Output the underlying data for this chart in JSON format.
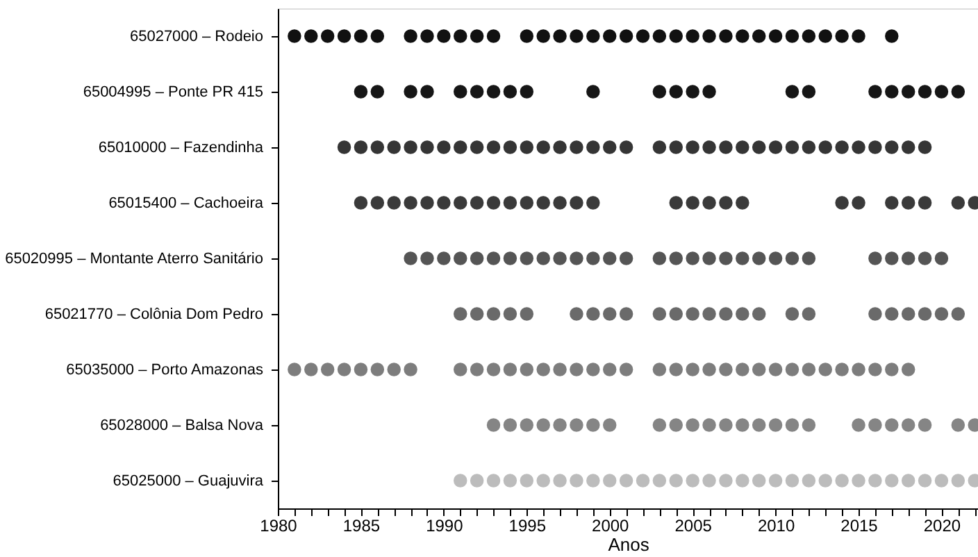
{
  "chart_data": {
    "type": "scatter",
    "orientation": "horizontal",
    "xlabel": "Anos",
    "xlim": [
      1980,
      2022.2
    ],
    "xticks": [
      1980,
      {
        "value": 1981,
        "label": null
      },
      {
        "value": 1982,
        "label": null
      },
      {
        "value": 1983,
        "label": null
      },
      {
        "value": 1984,
        "label": null
      },
      1985,
      {
        "value": 1986,
        "label": null
      },
      {
        "value": 1987,
        "label": null
      },
      {
        "value": 1988,
        "label": null
      },
      {
        "value": 1989,
        "label": null
      },
      1990,
      {
        "value": 1991,
        "label": null
      },
      {
        "value": 1992,
        "label": null
      },
      {
        "value": 1993,
        "label": null
      },
      {
        "value": 1994,
        "label": null
      },
      1995,
      {
        "value": 1996,
        "label": null
      },
      {
        "value": 1997,
        "label": null
      },
      {
        "value": 1998,
        "label": null
      },
      {
        "value": 1999,
        "label": null
      },
      2000,
      {
        "value": 2001,
        "label": null
      },
      {
        "value": 2002,
        "label": null
      },
      {
        "value": 2003,
        "label": null
      },
      {
        "value": 2004,
        "label": null
      },
      2005,
      {
        "value": 2006,
        "label": null
      },
      {
        "value": 2007,
        "label": null
      },
      {
        "value": 2008,
        "label": null
      },
      {
        "value": 2009,
        "label": null
      },
      2010,
      {
        "value": 2011,
        "label": null
      },
      {
        "value": 2012,
        "label": null
      },
      {
        "value": 2013,
        "label": null
      },
      {
        "value": 2014,
        "label": null
      },
      2015,
      {
        "value": 2016,
        "label": null
      },
      {
        "value": 2017,
        "label": null
      },
      {
        "value": 2018,
        "label": null
      },
      {
        "value": 2019,
        "label": null
      },
      2020,
      {
        "value": 2021,
        "label": null
      },
      {
        "value": 2022,
        "label": null
      }
    ],
    "categories": [
      "65027000 – Rodeio",
      "65004995 – Ponte PR 415",
      "65010000 – Fazendinha",
      "65015400 – Cachoeira",
      "65020995 – Montante Aterro Sanitário",
      "65021770 – Colônia Dom Pedro",
      "65035000 – Porto Amazonas",
      "65028000 – Balsa Nova",
      "65025000 – Guajuvira"
    ],
    "marker": "circle",
    "grid": false,
    "series": [
      {
        "colors": [
          "#111111",
          "#161616",
          "#353535",
          "#3a3a3a",
          "#555555",
          "#6a6a6a",
          "#7d7d7d",
          "#858585",
          "#bcbcbc"
        ],
        "values": [
          1981,
          1985,
          1984,
          1985,
          1988,
          1991,
          1981,
          1993,
          1991
        ]
      },
      {
        "colors": [
          "#111111",
          "#161616",
          "#353535",
          "#3a3a3a",
          "#555555",
          "#6a6a6a",
          "#7d7d7d",
          "#858585",
          "#bcbcbc"
        ],
        "values": [
          1982,
          1986,
          1985,
          1986,
          1989,
          1992,
          1982,
          1994,
          1992
        ]
      },
      {
        "colors": [
          "#111111",
          "#161616",
          "#353535",
          "#3a3a3a",
          "#555555",
          "#6a6a6a",
          "#7d7d7d",
          "#858585",
          "#bcbcbc"
        ],
        "values": [
          1983,
          1988,
          1986,
          1987,
          1990,
          1993,
          1983,
          1995,
          1993
        ]
      },
      {
        "colors": [
          "#111111",
          "#161616",
          "#353535",
          "#3a3a3a",
          "#555555",
          "#6a6a6a",
          "#7d7d7d",
          "#858585",
          "#bcbcbc"
        ],
        "values": [
          1984,
          1989,
          1987,
          1988,
          1991,
          1994,
          1984,
          1996,
          1994
        ]
      },
      {
        "colors": [
          "#111111",
          "#161616",
          "#353535",
          "#3a3a3a",
          "#555555",
          "#6a6a6a",
          "#7d7d7d",
          "#858585",
          "#bcbcbc"
        ],
        "values": [
          1985,
          1991,
          1988,
          1989,
          1992,
          1995,
          1985,
          1997,
          1995
        ]
      },
      {
        "colors": [
          "#111111",
          "#161616",
          "#353535",
          "#3a3a3a",
          "#555555",
          "#6a6a6a",
          "#7d7d7d",
          "#858585",
          "#bcbcbc"
        ],
        "values": [
          1986,
          1992,
          1989,
          1990,
          1993,
          1998,
          1986,
          1998,
          1996
        ]
      },
      {
        "colors": [
          "#111111",
          "#161616",
          "#353535",
          "#3a3a3a",
          "#555555",
          "#6a6a6a",
          "#7d7d7d",
          "#858585",
          "#bcbcbc"
        ],
        "values": [
          1988,
          1993,
          1990,
          1991,
          1994,
          1999,
          1987,
          1999,
          1997
        ]
      },
      {
        "colors": [
          "#111111",
          "#161616",
          "#353535",
          "#3a3a3a",
          "#555555",
          "#6a6a6a",
          "#7d7d7d",
          "#858585",
          "#bcbcbc"
        ],
        "values": [
          1989,
          1994,
          1991,
          1992,
          1995,
          2000,
          1988,
          2000,
          1998
        ]
      },
      {
        "colors": [
          "#111111",
          "#161616",
          "#353535",
          "#3a3a3a",
          "#555555",
          "#6a6a6a",
          "#7d7d7d",
          "#858585",
          "#bcbcbc"
        ],
        "values": [
          1990,
          1995,
          1992,
          1993,
          1996,
          2001,
          1991,
          2003,
          1999
        ]
      },
      {
        "colors": [
          "#111111",
          "#161616",
          "#353535",
          "#3a3a3a",
          "#555555",
          "#6a6a6a",
          "#7d7d7d",
          "#858585",
          "#bcbcbc"
        ],
        "values": [
          1991,
          1999,
          1993,
          1994,
          1997,
          2003,
          1992,
          2004,
          2000
        ]
      },
      {
        "colors": [
          "#111111",
          "#161616",
          "#353535",
          "#3a3a3a",
          "#555555",
          "#6a6a6a",
          "#7d7d7d",
          "#858585",
          "#bcbcbc"
        ],
        "values": [
          1992,
          2003,
          1994,
          1995,
          1998,
          2004,
          1993,
          2005,
          2001
        ]
      },
      {
        "colors": [
          "#111111",
          "#161616",
          "#353535",
          "#3a3a3a",
          "#555555",
          "#6a6a6a",
          "#7d7d7d",
          "#858585",
          "#bcbcbc"
        ],
        "values": [
          1993,
          2004,
          1995,
          1996,
          1999,
          2005,
          1994,
          2006,
          2002
        ]
      },
      {
        "colors": [
          "#111111",
          "#161616",
          "#353535",
          "#3a3a3a",
          "#555555",
          "#6a6a6a",
          "#7d7d7d",
          "#858585",
          "#bcbcbc"
        ],
        "values": [
          1995,
          2005,
          1996,
          1997,
          2000,
          2006,
          1995,
          2007,
          2003
        ]
      },
      {
        "colors": [
          "#111111",
          "#161616",
          "#353535",
          "#3a3a3a",
          "#555555",
          "#6a6a6a",
          "#7d7d7d",
          "#858585",
          "#bcbcbc"
        ],
        "values": [
          1996,
          2006,
          1997,
          1998,
          2001,
          2007,
          1996,
          2008,
          2004
        ]
      },
      {
        "colors": [
          "#111111",
          "#161616",
          "#353535",
          "#3a3a3a",
          "#555555",
          "#6a6a6a",
          "#7d7d7d",
          "#858585",
          "#bcbcbc"
        ],
        "values": [
          1997,
          2011,
          1998,
          1999,
          2003,
          2008,
          1997,
          2009,
          2005
        ]
      },
      {
        "colors": [
          "#111111",
          "#161616",
          "#353535",
          "#3a3a3a",
          "#555555",
          "#6a6a6a",
          "#7d7d7d",
          "#858585",
          "#bcbcbc"
        ],
        "values": [
          1998,
          2012,
          1999,
          2004,
          2004,
          2009,
          1998,
          2010,
          2006
        ]
      },
      {
        "colors": [
          "#111111",
          "#161616",
          "#353535",
          "#3a3a3a",
          "#555555",
          "#6a6a6a",
          "#7d7d7d",
          "#858585",
          "#bcbcbc"
        ],
        "values": [
          1999,
          2016,
          2000,
          2005,
          2005,
          2011,
          1999,
          2011,
          2007
        ]
      },
      {
        "colors": [
          "#111111",
          "#161616",
          "#353535",
          "#3a3a3a",
          "#555555",
          "#6a6a6a",
          "#7d7d7d",
          "#858585",
          "#bcbcbc"
        ],
        "values": [
          2000,
          2017,
          2001,
          2006,
          2006,
          2012,
          2000,
          2012,
          2008
        ]
      },
      {
        "colors": [
          "#111111",
          "#161616",
          "#353535",
          "#3a3a3a",
          "#555555",
          "#6a6a6a",
          "#7d7d7d",
          "#858585",
          "#bcbcbc"
        ],
        "values": [
          2001,
          2018,
          2003,
          2007,
          2007,
          2016,
          2001,
          2015,
          2009
        ]
      },
      {
        "colors": [
          "#111111",
          "#161616",
          "#353535",
          "#3a3a3a",
          "#555555",
          "#6a6a6a",
          "#7d7d7d",
          "#858585",
          "#bcbcbc"
        ],
        "values": [
          2002,
          2019,
          2004,
          2008,
          2008,
          2017,
          2003,
          2016,
          2010
        ]
      },
      {
        "colors": [
          "#111111",
          "#161616",
          "#353535",
          "#3a3a3a",
          "#555555",
          "#6a6a6a",
          "#7d7d7d",
          "#858585",
          "#bcbcbc"
        ],
        "values": [
          2003,
          2020,
          2005,
          2014,
          2009,
          2018,
          2004,
          2017,
          2011
        ]
      },
      {
        "colors": [
          "#111111",
          "#161616",
          "#353535",
          "#3a3a3a",
          "#555555",
          "#6a6a6a",
          "#7d7d7d",
          "#858585",
          "#bcbcbc"
        ],
        "values": [
          2004,
          2021,
          2006,
          2015,
          2010,
          2019,
          2005,
          2018,
          2012
        ]
      },
      {
        "colors": [
          "#111111",
          "#161616",
          "#353535",
          "#3a3a3a",
          "#555555",
          "#6a6a6a",
          "#7d7d7d",
          "#858585",
          "#bcbcbc"
        ],
        "values": [
          2005,
          null,
          2007,
          2017,
          2011,
          2020,
          2006,
          2019,
          2013
        ]
      },
      {
        "colors": [
          "#111111",
          "#161616",
          "#353535",
          "#3a3a3a",
          "#555555",
          "#6a6a6a",
          "#7d7d7d",
          "#858585",
          "#bcbcbc"
        ],
        "values": [
          2006,
          null,
          2008,
          2018,
          2012,
          2021,
          2007,
          2021,
          2014
        ]
      },
      {
        "colors": [
          "#111111",
          "#161616",
          "#353535",
          "#3a3a3a",
          "#555555",
          "#6a6a6a",
          "#7d7d7d",
          "#858585",
          "#bcbcbc"
        ],
        "values": [
          2007,
          null,
          2009,
          2019,
          2016,
          null,
          2008,
          2022,
          2015
        ]
      },
      {
        "colors": [
          "#111111",
          "#161616",
          "#353535",
          "#3a3a3a",
          "#555555",
          "#6a6a6a",
          "#7d7d7d",
          "#858585",
          "#bcbcbc"
        ],
        "values": [
          2008,
          null,
          2010,
          2021,
          2017,
          null,
          2009,
          null,
          2016
        ]
      },
      {
        "colors": [
          "#111111",
          "#161616",
          "#353535",
          "#3a3a3a",
          "#555555",
          "#6a6a6a",
          "#7d7d7d",
          "#858585",
          "#bcbcbc"
        ],
        "values": [
          2009,
          null,
          2011,
          2022,
          2018,
          null,
          2010,
          null,
          2017
        ]
      },
      {
        "colors": [
          "#111111",
          "#161616",
          "#353535",
          "#3a3a3a",
          "#555555",
          "#6a6a6a",
          "#7d7d7d",
          "#858585",
          "#bcbcbc"
        ],
        "values": [
          2010,
          null,
          2012,
          null,
          2019,
          null,
          2011,
          null,
          2018
        ]
      },
      {
        "colors": [
          "#111111",
          "#161616",
          "#353535",
          "#3a3a3a",
          "#555555",
          "#6a6a6a",
          "#7d7d7d",
          "#858585",
          "#bcbcbc"
        ],
        "values": [
          2011,
          null,
          2013,
          null,
          2020,
          null,
          2012,
          null,
          2019
        ]
      },
      {
        "colors": [
          "#111111",
          "#161616",
          "#353535",
          "#3a3a3a",
          "#555555",
          "#6a6a6a",
          "#7d7d7d",
          "#858585",
          "#bcbcbc"
        ],
        "values": [
          2012,
          null,
          2014,
          null,
          null,
          null,
          2013,
          null,
          2020
        ]
      },
      {
        "colors": [
          "#111111",
          "#161616",
          "#353535",
          "#3a3a3a",
          "#555555",
          "#6a6a6a",
          "#7d7d7d",
          "#858585",
          "#bcbcbc"
        ],
        "values": [
          2013,
          null,
          2015,
          null,
          null,
          null,
          2014,
          null,
          2021
        ]
      },
      {
        "colors": [
          "#111111",
          "#161616",
          "#353535",
          "#3a3a3a",
          "#555555",
          "#6a6a6a",
          "#7d7d7d",
          "#858585",
          "#bcbcbc"
        ],
        "values": [
          2014,
          null,
          2016,
          null,
          null,
          null,
          2015,
          null,
          2022
        ]
      },
      {
        "colors": [
          "#111111",
          "#161616",
          "#353535",
          "#3a3a3a",
          "#555555",
          "#6a6a6a",
          "#7d7d7d",
          "#858585",
          "#bcbcbc"
        ],
        "values": [
          2015,
          null,
          2017,
          null,
          null,
          null,
          2016,
          null,
          null
        ]
      },
      {
        "colors": [
          "#111111",
          "#161616",
          "#353535",
          "#3a3a3a",
          "#555555",
          "#6a6a6a",
          "#7d7d7d",
          "#858585",
          "#bcbcbc"
        ],
        "values": [
          2017,
          null,
          2018,
          null,
          null,
          null,
          2017,
          null,
          null
        ]
      },
      {
        "colors": [
          "#111111",
          "#161616",
          "#353535",
          "#3a3a3a",
          "#555555",
          "#6a6a6a",
          "#7d7d7d",
          "#858585",
          "#bcbcbc"
        ],
        "values": [
          null,
          null,
          2019,
          null,
          null,
          null,
          2018,
          null,
          null
        ]
      }
    ]
  }
}
